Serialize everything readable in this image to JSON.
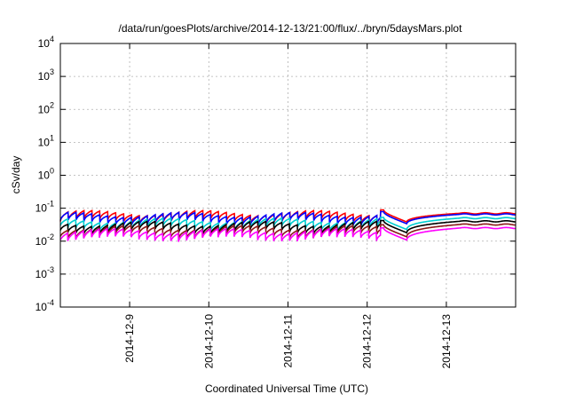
{
  "chart_data": {
    "type": "line",
    "title": "/data/run/goesPlots/archive/2014-12-13/21:00/flux/../bryn/5daysMars.plot",
    "xlabel": "Coordinated Universal Time (UTC)",
    "ylabel": "cSv/day",
    "yscale": "log",
    "ylim": [
      0.0001,
      10000
    ],
    "xlim": [
      "2014-12-08T03:00",
      "2014-12-13T21:00"
    ],
    "grid": true,
    "y_ticks": [
      {
        "value": 0.0001,
        "base": "10",
        "exp": "-4"
      },
      {
        "value": 0.001,
        "base": "10",
        "exp": "-3"
      },
      {
        "value": 0.01,
        "base": "10",
        "exp": "-2"
      },
      {
        "value": 0.1,
        "base": "10",
        "exp": "-1"
      },
      {
        "value": 1,
        "base": "10",
        "exp": "0"
      },
      {
        "value": 10,
        "base": "10",
        "exp": "1"
      },
      {
        "value": 100,
        "base": "10",
        "exp": "2"
      },
      {
        "value": 1000,
        "base": "10",
        "exp": "3"
      },
      {
        "value": 10000,
        "base": "10",
        "exp": "4"
      }
    ],
    "x_ticks": [
      {
        "value": "2014-12-09T00:00",
        "label": "2014-12-9"
      },
      {
        "value": "2014-12-10T00:00",
        "label": "2014-12-10"
      },
      {
        "value": "2014-12-11T00:00",
        "label": "2014-12-11"
      },
      {
        "value": "2014-12-12T00:00",
        "label": "2014-12-12"
      },
      {
        "value": "2014-12-13T00:00",
        "label": "2014-12-13"
      }
    ],
    "series": [
      {
        "color": "#ff0000",
        "baseline": 0.085,
        "trough": 0.06,
        "recovery": 0.07
      },
      {
        "color": "#0000ff",
        "baseline": 0.075,
        "trough": 0.055,
        "recovery": 0.065
      },
      {
        "color": "#00ced1",
        "baseline": 0.05,
        "trough": 0.04,
        "recovery": 0.05
      },
      {
        "color": "#000000",
        "baseline": 0.04,
        "trough": 0.032,
        "recovery": 0.04
      },
      {
        "color": "#8b1a1a",
        "baseline": 0.03,
        "trough": 0.026,
        "recovery": 0.032
      },
      {
        "color": "#ff00ff",
        "baseline": 0.024,
        "trough": 0.02,
        "recovery": 0.025
      }
    ],
    "pattern": {
      "sawtooth_period_hours": 2.4,
      "sawtooth_drop_factor": 0.55,
      "sawtooth_end": "2014-12-12T04:00",
      "dip_start": "2014-12-12T05:00",
      "dip_min_time": "2014-12-12T12:00",
      "dip_factor": 0.45,
      "recovery_end": "2014-12-13T04:00"
    }
  }
}
